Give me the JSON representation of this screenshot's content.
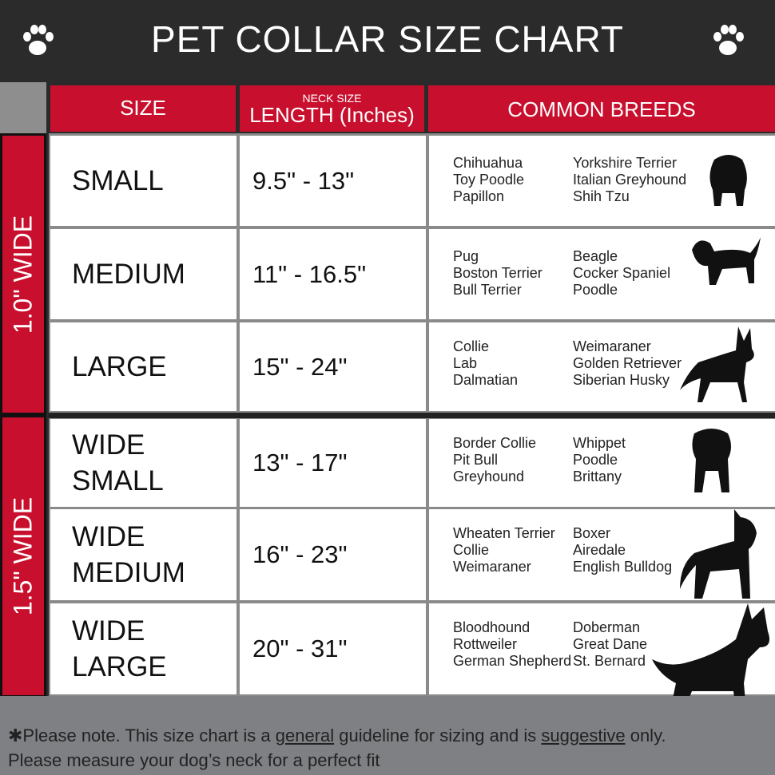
{
  "title": "PET COLLAR SIZE CHART",
  "headers": {
    "size": "SIZE",
    "neck_small": "NECK SIZE",
    "length": "LENGTH (Inches)",
    "breeds": "COMMON BREEDS"
  },
  "groups": [
    "1.0\" WIDE",
    "1.5\" WIDE"
  ],
  "rows": [
    {
      "size": [
        "SMALL"
      ],
      "length": "9.5\" - 13\"",
      "breeds_a": [
        "Chihuahua",
        "Toy Poodle",
        "Papillon"
      ],
      "breeds_b": [
        "Yorkshire Terrier",
        "Italian Greyhound",
        "Shih Tzu"
      ]
    },
    {
      "size": [
        "MEDIUM"
      ],
      "length": "11\" - 16.5\"",
      "breeds_a": [
        "Pug",
        "Boston Terrier",
        "Bull Terrier"
      ],
      "breeds_b": [
        "Beagle",
        "Cocker Spaniel",
        "Poodle"
      ]
    },
    {
      "size": [
        "LARGE"
      ],
      "length": "15\" - 24\"",
      "breeds_a": [
        "Collie",
        "Lab",
        "Dalmatian"
      ],
      "breeds_b": [
        "Weimaraner",
        "Golden Retriever",
        "Siberian Husky"
      ]
    },
    {
      "size": [
        "WIDE",
        "SMALL"
      ],
      "length": "13\" - 17\"",
      "breeds_a": [
        "Border Collie",
        "Pit Bull",
        "Greyhound"
      ],
      "breeds_b": [
        "Whippet",
        "Poodle",
        "Brittany"
      ]
    },
    {
      "size": [
        "WIDE",
        "MEDIUM"
      ],
      "length": "16\" - 23\"",
      "breeds_a": [
        "Wheaten Terrier",
        "Collie",
        "Weimaraner"
      ],
      "breeds_b": [
        "Boxer",
        "Airedale",
        "English Bulldog"
      ]
    },
    {
      "size": [
        "WIDE",
        "LARGE"
      ],
      "length": "20\" - 31\"",
      "breeds_a": [
        "Bloodhound",
        "Rottweiler",
        "German Shepherd"
      ],
      "breeds_b": [
        "Doberman",
        "Great Dane",
        "St. Bernard"
      ]
    }
  ],
  "footer": {
    "p1": "✱Please note. This size chart is a ",
    "u1": "general",
    "p2": " guideline for sizing and is ",
    "u2": "suggestive",
    "p3": " only.",
    "line2": "Please measure your dog’s neck for a perfect fit"
  },
  "colors": {
    "red": "#c8102e",
    "dark": "#2b2b2b",
    "gray": "#7f8084"
  }
}
